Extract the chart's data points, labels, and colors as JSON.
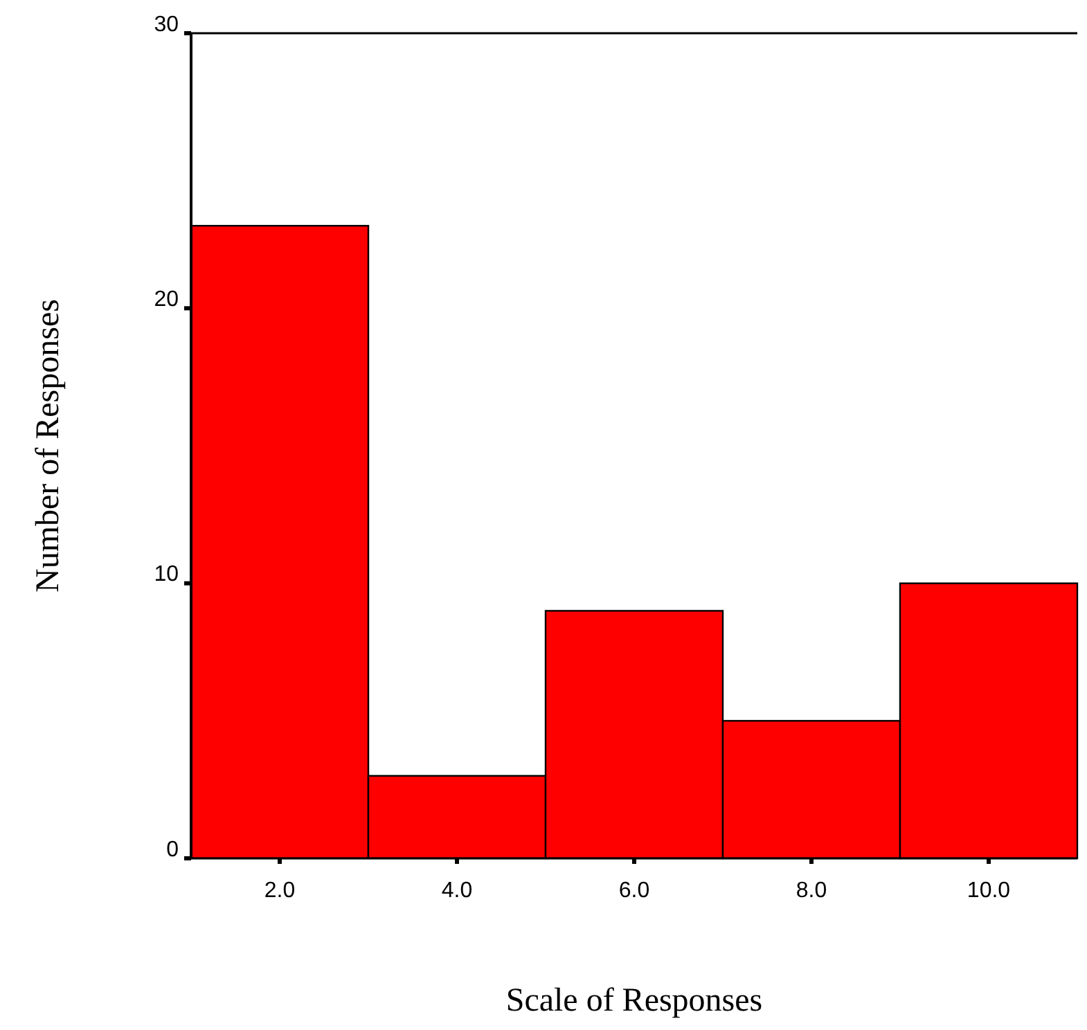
{
  "chart_data": {
    "type": "histogram",
    "xlabel": "Scale of Responses",
    "ylabel": "Number of Responses",
    "bins": [
      1,
      3,
      5,
      7,
      9,
      11
    ],
    "values": [
      23,
      3,
      9,
      5,
      10
    ],
    "color": "#ff0000",
    "xlim": [
      1,
      11
    ],
    "xticks": [
      {
        "value": 2,
        "label": "2.0"
      },
      {
        "value": 4,
        "label": "4.0"
      },
      {
        "value": 6,
        "label": "6.0"
      },
      {
        "value": 8,
        "label": "8.0"
      },
      {
        "value": 10,
        "label": "10.0"
      }
    ],
    "ylim": [
      0,
      30
    ],
    "yticks": [
      0,
      10,
      20,
      30
    ]
  }
}
